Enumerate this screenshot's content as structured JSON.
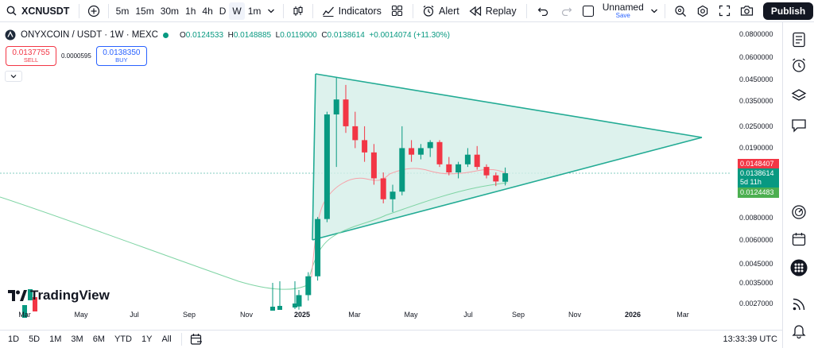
{
  "toolbar": {
    "symbol": "XCNUSDT",
    "intervals": [
      "5m",
      "15m",
      "30m",
      "1h",
      "4h",
      "D",
      "W",
      "1m"
    ],
    "active_interval": "W",
    "indicators_label": "Indicators",
    "alert_label": "Alert",
    "replay_label": "Replay",
    "layout_name": "Unnamed",
    "save_label": "Save",
    "publish_label": "Publish"
  },
  "legend": {
    "title": "ONYXCOIN / USDT · 1W · MEXC",
    "o_label": "O",
    "o": "0.0124533",
    "h_label": "H",
    "h": "0.0148885",
    "l_label": "L",
    "l": "0.0119000",
    "c_label": "C",
    "c": "0.0138614",
    "change": "+0.0014074 (+11.30%)"
  },
  "trade": {
    "sell_price": "0.0137755",
    "sell_label": "SELL",
    "spread": "0.0000595",
    "buy_price": "0.0138350",
    "buy_label": "BUY"
  },
  "watermark": "TradingView",
  "price_axis": {
    "labels": [
      "0.0800000",
      "0.0600000",
      "0.0450000",
      "0.0350000",
      "0.0250000",
      "0.0190000",
      "0.0080000",
      "0.0060000",
      "0.0045000",
      "0.0035000",
      "0.0027000"
    ],
    "tag_high": "0.0148407",
    "tag_close": "0.0138614",
    "tag_countdown": "5d 11h",
    "tag_low": "0.0124483"
  },
  "time_axis": {
    "labels": [
      "Mar",
      "May",
      "Jul",
      "Sep",
      "Nov",
      "2025",
      "Mar",
      "May",
      "Jul",
      "Sep",
      "Nov",
      "2026",
      "Mar"
    ]
  },
  "bottom": {
    "ranges": [
      "1D",
      "5D",
      "1M",
      "3M",
      "6M",
      "YTD",
      "1Y",
      "All"
    ],
    "clock": "13:33:39 UTC"
  },
  "colors": {
    "up": "#089981",
    "down": "#f23645",
    "triangle_fill": "#d4efe8",
    "triangle_line": "#22ab94",
    "ma_red": "#f7a1a8",
    "ma_green": "#7fd4a4"
  },
  "chart_data": {
    "type": "candlestick",
    "symbol": "ONYXCOIN / USDT",
    "timeframe": "1W",
    "exchange": "MEXC",
    "scale": "log",
    "price_range": [
      0.0025,
      0.09
    ],
    "recent_candles_approx": [
      {
        "o": 0.0026,
        "h": 0.0032,
        "l": 0.0025,
        "c": 0.003
      },
      {
        "o": 0.003,
        "h": 0.004,
        "l": 0.0028,
        "c": 0.0038
      },
      {
        "o": 0.0038,
        "h": 0.008,
        "l": 0.0036,
        "c": 0.0078
      },
      {
        "o": 0.0078,
        "h": 0.03,
        "l": 0.0075,
        "c": 0.029
      },
      {
        "o": 0.029,
        "h": 0.046,
        "l": 0.015,
        "c": 0.035
      },
      {
        "o": 0.035,
        "h": 0.042,
        "l": 0.023,
        "c": 0.025
      },
      {
        "o": 0.025,
        "h": 0.03,
        "l": 0.019,
        "c": 0.021
      },
      {
        "o": 0.021,
        "h": 0.025,
        "l": 0.016,
        "c": 0.018
      },
      {
        "o": 0.018,
        "h": 0.02,
        "l": 0.012,
        "c": 0.013
      },
      {
        "o": 0.013,
        "h": 0.014,
        "l": 0.0095,
        "c": 0.01
      },
      {
        "o": 0.01,
        "h": 0.012,
        "l": 0.0085,
        "c": 0.011
      },
      {
        "o": 0.011,
        "h": 0.025,
        "l": 0.0105,
        "c": 0.019
      },
      {
        "o": 0.019,
        "h": 0.021,
        "l": 0.016,
        "c": 0.0175
      },
      {
        "o": 0.0175,
        "h": 0.02,
        "l": 0.0165,
        "c": 0.019
      },
      {
        "o": 0.019,
        "h": 0.021,
        "l": 0.017,
        "c": 0.0205
      },
      {
        "o": 0.0205,
        "h": 0.021,
        "l": 0.015,
        "c": 0.0155
      },
      {
        "o": 0.0155,
        "h": 0.017,
        "l": 0.0135,
        "c": 0.014
      },
      {
        "o": 0.014,
        "h": 0.016,
        "l": 0.013,
        "c": 0.0155
      },
      {
        "o": 0.0155,
        "h": 0.019,
        "l": 0.015,
        "c": 0.0175
      },
      {
        "o": 0.0175,
        "h": 0.0195,
        "l": 0.0145,
        "c": 0.015
      },
      {
        "o": 0.015,
        "h": 0.0155,
        "l": 0.013,
        "c": 0.0135
      },
      {
        "o": 0.0135,
        "h": 0.014,
        "l": 0.0118,
        "c": 0.0125
      },
      {
        "o": 0.0124533,
        "h": 0.0148885,
        "l": 0.0119,
        "c": 0.0138614
      }
    ]
  }
}
